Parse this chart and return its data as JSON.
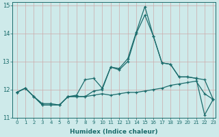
{
  "title": "",
  "xlabel": "Humidex (Indice chaleur)",
  "bg_color": "#ceeaea",
  "grid_color": "#b0cccc",
  "line_color": "#1a6b6b",
  "xlim": [
    -0.5,
    23.3
  ],
  "ylim": [
    11.0,
    15.1
  ],
  "yticks": [
    11,
    12,
    13,
    14,
    15
  ],
  "xticks": [
    0,
    1,
    2,
    3,
    4,
    5,
    6,
    7,
    8,
    9,
    10,
    11,
    12,
    13,
    14,
    15,
    16,
    17,
    18,
    19,
    20,
    21,
    22,
    23
  ],
  "line_spike_x": [
    0,
    1,
    2,
    3,
    4,
    5,
    6,
    7,
    8,
    9,
    10,
    11,
    12,
    13,
    14,
    15,
    16,
    17,
    18,
    19,
    20,
    21,
    22,
    23
  ],
  "line_spike_y": [
    11.9,
    12.05,
    11.75,
    11.5,
    11.5,
    11.45,
    11.75,
    11.8,
    12.35,
    12.4,
    12.05,
    12.8,
    12.75,
    13.1,
    14.05,
    14.95,
    13.9,
    12.95,
    12.9,
    12.45,
    12.45,
    12.4,
    11.1,
    11.65
  ],
  "line_mid_x": [
    0,
    1,
    2,
    3,
    4,
    5,
    6,
    7,
    8,
    9,
    10,
    11,
    12,
    13,
    14,
    15,
    16,
    17,
    18,
    19,
    20,
    21,
    22,
    23
  ],
  "line_mid_y": [
    11.9,
    12.05,
    11.75,
    11.45,
    11.45,
    11.45,
    11.75,
    11.75,
    11.75,
    11.95,
    12.0,
    12.8,
    12.7,
    13.0,
    14.0,
    14.65,
    13.9,
    12.95,
    12.9,
    12.45,
    12.45,
    12.4,
    12.35,
    11.65
  ],
  "line_flat_x": [
    0,
    1,
    2,
    3,
    4,
    5,
    6,
    7,
    8,
    9,
    10,
    11,
    12,
    13,
    14,
    15,
    16,
    17,
    18,
    19,
    20,
    21,
    22,
    23
  ],
  "line_flat_y": [
    11.9,
    12.05,
    11.75,
    11.45,
    11.45,
    11.45,
    11.75,
    11.75,
    11.75,
    11.8,
    11.85,
    11.8,
    11.85,
    11.9,
    11.9,
    11.95,
    12.0,
    12.05,
    12.15,
    12.2,
    12.25,
    12.3,
    11.85,
    11.65
  ]
}
